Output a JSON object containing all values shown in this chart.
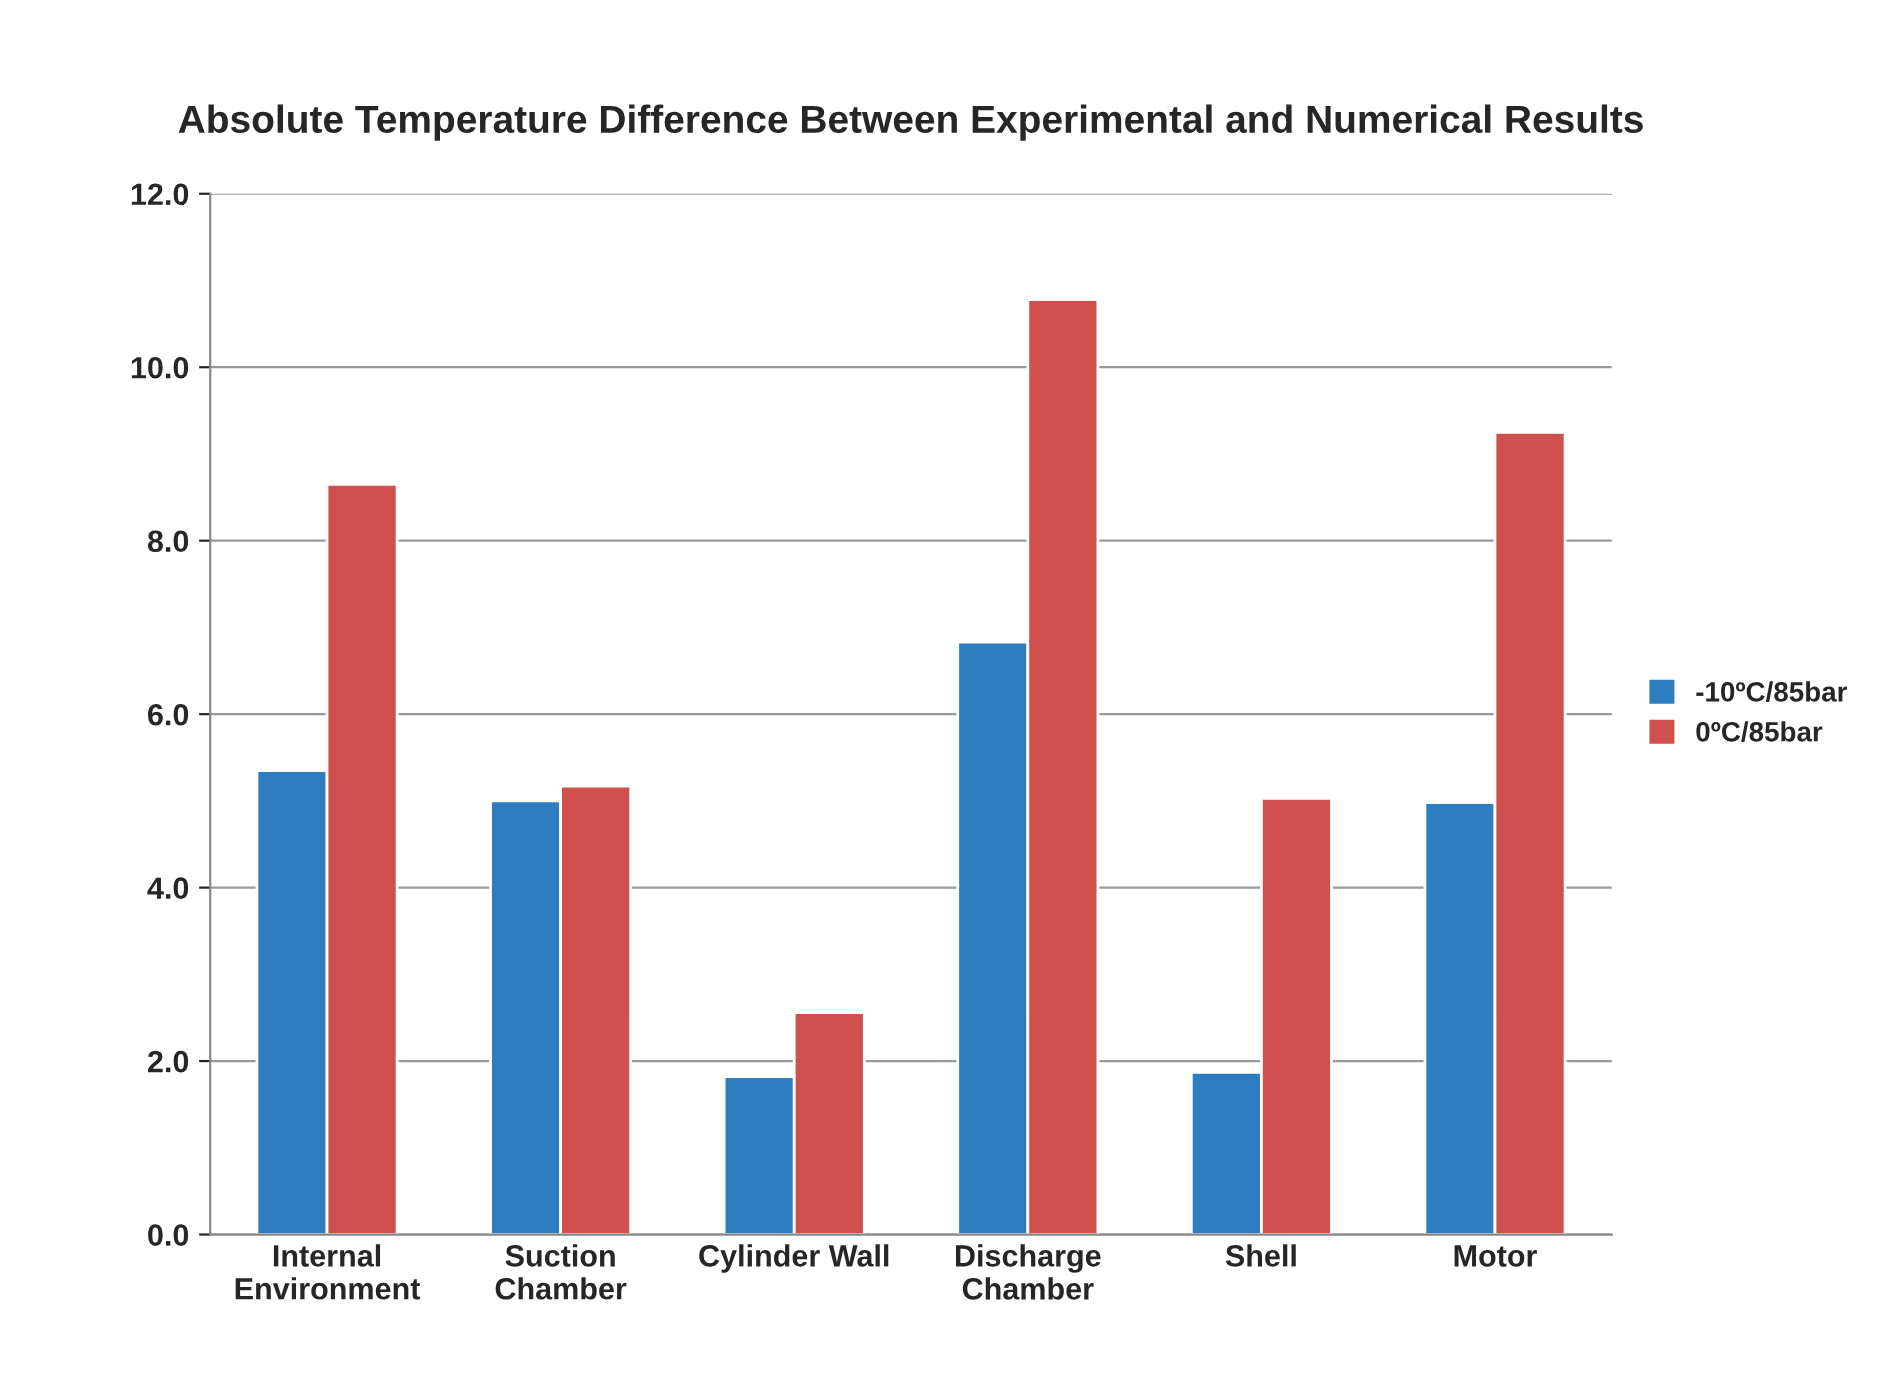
{
  "chart_data": {
    "type": "bar",
    "title": "Absolute Temperature Difference Between Experimental and Numerical Results",
    "categories": [
      "Internal\nEnvironment",
      "Suction\nChamber",
      "Cylinder Wall",
      "Discharge\nChamber",
      "Shell",
      "Motor"
    ],
    "series": [
      {
        "name": "-10ºC/85bar",
        "color": "#2e7dc0",
        "values": [
          5.35,
          5.0,
          1.82,
          6.83,
          1.87,
          4.98
        ]
      },
      {
        "name": "0ºC/85bar",
        "color": "#d0504e",
        "values": [
          8.65,
          5.17,
          2.56,
          10.78,
          5.03,
          9.25
        ]
      }
    ],
    "ylim": [
      0,
      12
    ],
    "yticks": [
      {
        "value": 0,
        "label": "0.0"
      },
      {
        "value": 2,
        "label": "2.0"
      },
      {
        "value": 4,
        "label": "4.0"
      },
      {
        "value": 6,
        "label": "6.0"
      },
      {
        "value": 8,
        "label": "8.0"
      },
      {
        "value": 10,
        "label": "10.0"
      },
      {
        "value": 12,
        "label": "12.0"
      }
    ],
    "grid": "y",
    "legend": "right"
  }
}
